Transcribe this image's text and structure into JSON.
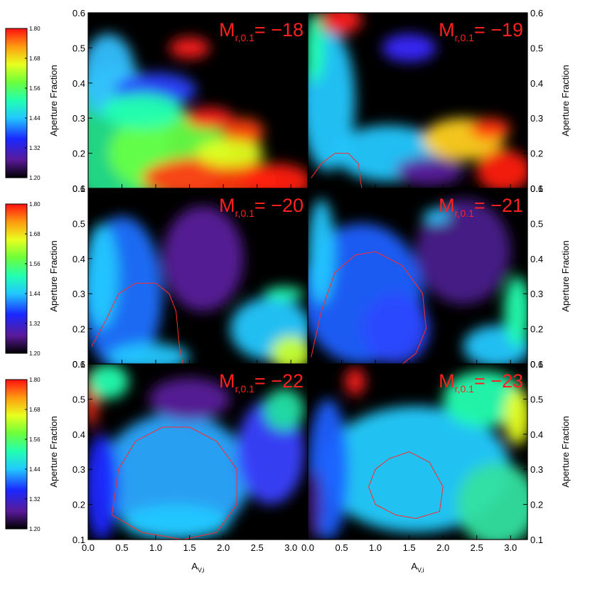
{
  "chart_data": {
    "type": "heatmap",
    "layout": "3 rows x 2 columns",
    "x_axis": {
      "label_main": "A",
      "label_sub": "V,i",
      "range": [
        0.0,
        3.25
      ],
      "ticks": [
        "0.0",
        "0.5",
        "1.0",
        "1.5",
        "2.0",
        "2.5",
        "3.0"
      ]
    },
    "y_axis": {
      "label": "Aperture Fraction",
      "range": [
        0.1,
        0.6
      ],
      "ticks": [
        "0.1",
        "0.2",
        "0.3",
        "0.4",
        "0.5",
        "0.6"
      ]
    },
    "colorbar": {
      "range": [
        1.2,
        1.8
      ],
      "ticks": [
        "1.80",
        "1.68",
        "1.56",
        "1.44",
        "1.32",
        "1.20"
      ],
      "colors": [
        "#000000",
        "#5a1a9a",
        "#1a28ff",
        "#22c8ff",
        "#22ffb0",
        "#6cff3a",
        "#e8ff20",
        "#ff9a10",
        "#ff1010"
      ]
    },
    "colors": {
      "background": "#000000",
      "contour": "#ff2a2a",
      "title": "#ff2020"
    },
    "panels": [
      {
        "title_main": "M",
        "title_sub": "r,0.1",
        "title_value": "= −18"
      },
      {
        "title_main": "M",
        "title_sub": "r,0.1",
        "title_value": "= −19"
      },
      {
        "title_main": "M",
        "title_sub": "r,0.1",
        "title_value": "= −20"
      },
      {
        "title_main": "M",
        "title_sub": "r,0.1",
        "title_value": "= −21"
      },
      {
        "title_main": "M",
        "title_sub": "r,0.1",
        "title_value": "= −22"
      },
      {
        "title_main": "M",
        "title_sub": "r,0.1",
        "title_value": "= −23"
      }
    ]
  }
}
